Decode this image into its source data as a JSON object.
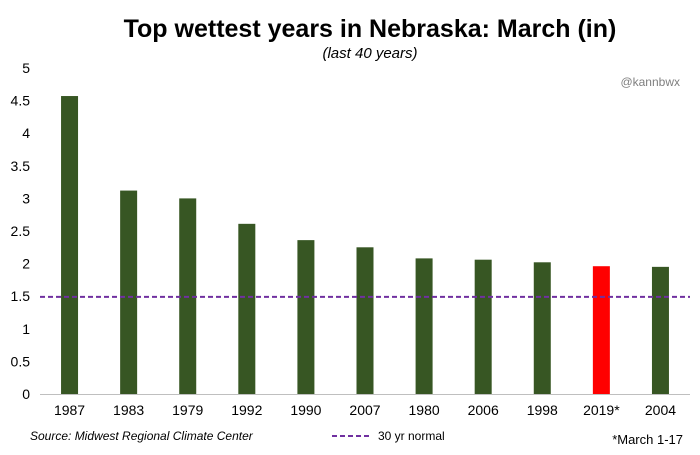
{
  "chart_data": {
    "type": "bar",
    "title": "Top wettest years in Nebraska: March (in)",
    "subtitle": "(last 40 years)",
    "categories": [
      "1987",
      "1983",
      "1979",
      "1992",
      "1990",
      "2007",
      "1980",
      "2006",
      "1998",
      "2019*",
      "2004"
    ],
    "values": [
      4.57,
      3.12,
      3.0,
      2.61,
      2.36,
      2.25,
      2.08,
      2.06,
      2.02,
      1.96,
      1.95
    ],
    "highlight_category": "2019*",
    "ylim": [
      0,
      5
    ],
    "yticks": [
      0,
      0.5,
      1,
      1.5,
      2,
      2.5,
      3,
      3.5,
      4,
      4.5,
      5
    ],
    "reference_line": {
      "label": "30 yr normal",
      "value": 1.49,
      "color": "#7030a0",
      "style": "dashed"
    },
    "grid": false,
    "legend_position": "bottom-center",
    "colors": {
      "bar": "#375623",
      "highlight": "#ff0000"
    }
  },
  "watermark": "@kannbwx",
  "source": "Source:  Midwest  Regional  Climate Center",
  "footnote": "*March 1-17"
}
